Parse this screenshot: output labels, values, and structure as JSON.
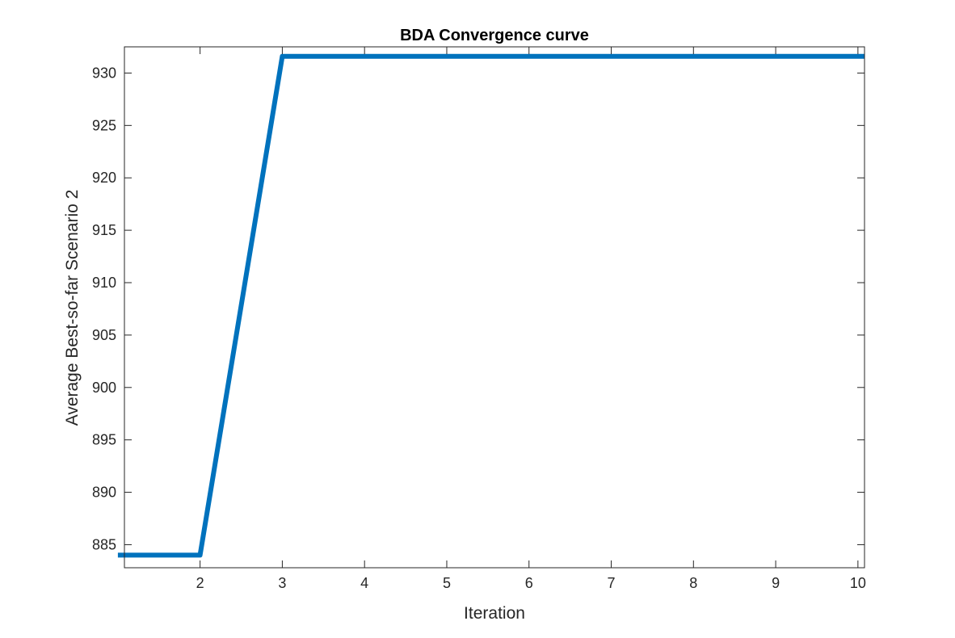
{
  "chart_data": {
    "type": "line",
    "title": "BDA Convergence curve",
    "xlabel": "Iteration",
    "ylabel": "Average Best-so-far Scenario 2",
    "xlim": [
      1.08,
      10.08
    ],
    "ylim": [
      882.8,
      932.5
    ],
    "xticks": [
      2,
      3,
      4,
      5,
      6,
      7,
      8,
      9,
      10
    ],
    "yticks": [
      885,
      890,
      895,
      900,
      905,
      910,
      915,
      920,
      925,
      930
    ],
    "grid": false,
    "series": [
      {
        "x": [
          1,
          2,
          3,
          4,
          5,
          6,
          7,
          8,
          9,
          10,
          10.08
        ],
        "values": [
          884,
          884,
          931.6,
          931.6,
          931.6,
          931.6,
          931.6,
          931.6,
          931.6,
          931.6,
          931.6
        ],
        "color": "#0072BD"
      }
    ]
  }
}
